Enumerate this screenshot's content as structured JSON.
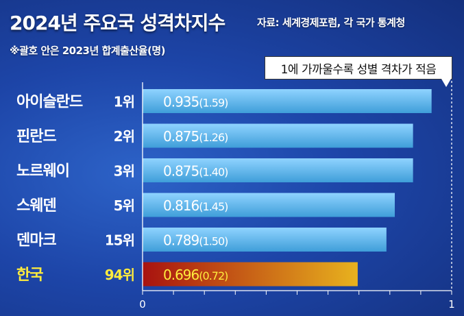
{
  "header": {
    "title": "2024년 주요국 성격차지수",
    "source": "자료: 세계경제포럼, 각 국가 통계청",
    "note": "※괄호 안은 2023년 합계출산율(명)"
  },
  "callout": {
    "text": "1에 가까울수록 성별 격차가 적음"
  },
  "colors": {
    "bar_top": "#8fd3ff",
    "bar_bottom": "#3f9ed9",
    "highlight_left": "#a8120f",
    "highlight_right": "#e8b21e",
    "label": "#ffffff",
    "highlight_label": "#ffec3d",
    "background": "#1d45a8"
  },
  "chart_data": {
    "type": "bar",
    "orientation": "horizontal",
    "categories": [
      "아이슬란드",
      "핀란드",
      "노르웨이",
      "스웨덴",
      "덴마크",
      "한국"
    ],
    "ranks": [
      "1위",
      "2위",
      "3위",
      "5위",
      "15위",
      "94위"
    ],
    "values": [
      0.935,
      0.875,
      0.875,
      0.816,
      0.789,
      0.696
    ],
    "value_labels": [
      "0.935",
      "0.875",
      "0.875",
      "0.816",
      "0.789",
      "0.696"
    ],
    "fertility_labels": [
      "(1.59)",
      "(1.26)",
      "(1.40)",
      "(1.45)",
      "(1.50)",
      "(0.72)"
    ],
    "fertility_rate_2023": [
      1.59,
      1.26,
      1.4,
      1.45,
      1.5,
      0.72
    ],
    "highlight_index": 5,
    "xlim": [
      0,
      1
    ],
    "x_tick_labels": [
      "0",
      "1"
    ],
    "minor_ticks": 10
  }
}
